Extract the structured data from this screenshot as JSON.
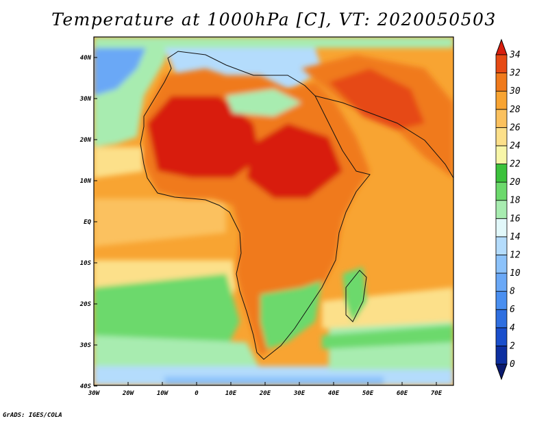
{
  "title": "Temperature at 1000hPa [C], VT: 2020050503",
  "footer": "GrADS: IGES/COLA",
  "map": {
    "lon_range": [
      -30,
      75
    ],
    "lat_range": [
      -40,
      45
    ],
    "lon_ticks": [
      "30W",
      "20W",
      "10W",
      "0",
      "10E",
      "20E",
      "30E",
      "40E",
      "50E",
      "60E",
      "70E"
    ],
    "lat_ticks": [
      "40N",
      "30N",
      "20N",
      "10N",
      "EQ",
      "10S",
      "20S",
      "30S",
      "40S"
    ]
  },
  "colorbar": {
    "levels": [
      "0",
      "2",
      "4",
      "6",
      "8",
      "10",
      "12",
      "14",
      "16",
      "18",
      "20",
      "22",
      "24",
      "26",
      "28",
      "30",
      "32",
      "34"
    ],
    "colors": [
      "#0a1a6e",
      "#0d2fa0",
      "#1a4fcc",
      "#2f6fe0",
      "#4a8ff0",
      "#6aa8f6",
      "#8cc2fa",
      "#b4dcfc",
      "#e2f8fa",
      "#a8ecb0",
      "#6cd96c",
      "#3cc23c",
      "#f8f6a8",
      "#fce08a",
      "#fbc15e",
      "#f8a432",
      "#f07a1c",
      "#e64a14",
      "#d81e0e"
    ]
  }
}
